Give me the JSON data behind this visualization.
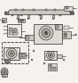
{
  "bg_color": "#f5f2ee",
  "dark": "#2a2a2a",
  "med": "#666666",
  "light_gray": "#aaaaaa",
  "part_fill": "#dedad4",
  "part_fill2": "#ccc8c0",
  "part_dark": "#b0aca4",
  "part_darker": "#908c84",
  "white_ish": "#eeebe6",
  "figsize": [
    0.88,
    0.93
  ],
  "dpi": 100
}
